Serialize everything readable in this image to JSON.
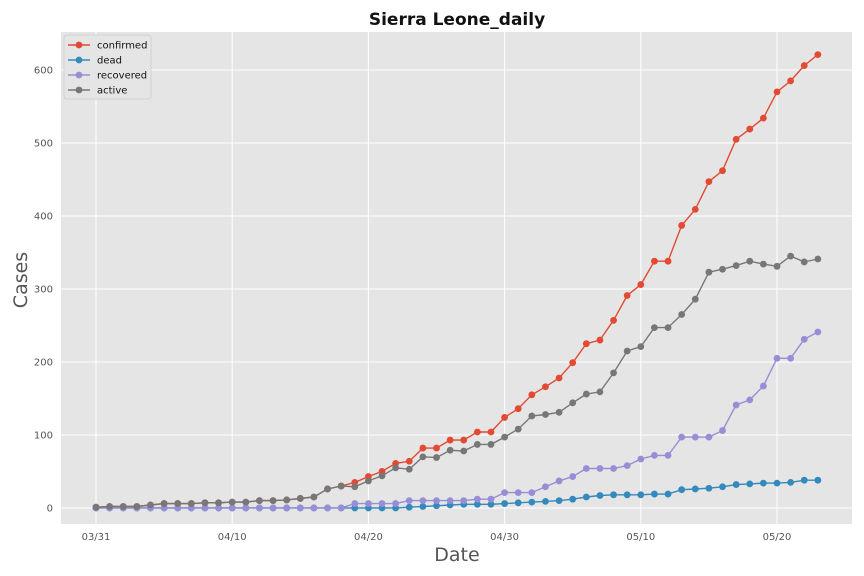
{
  "chart_data": {
    "type": "line",
    "title": "Sierra Leone_daily",
    "xlabel": "Date",
    "ylabel": "Cases",
    "x_start": "03/31",
    "x_tick_labels": [
      "03/31",
      "04/10",
      "04/20",
      "04/30",
      "05/10",
      "05/20"
    ],
    "y_ticks": [
      0,
      100,
      200,
      300,
      400,
      500,
      600
    ],
    "ylim": [
      -22,
      652
    ],
    "grid": true,
    "legend_position": "top-left",
    "series": [
      {
        "name": "confirmed",
        "color": "#E24A33",
        "values": [
          1,
          2,
          2,
          2,
          4,
          6,
          6,
          6,
          7,
          7,
          8,
          8,
          10,
          10,
          11,
          13,
          15,
          26,
          30,
          35,
          43,
          50,
          61,
          64,
          82,
          82,
          93,
          93,
          104,
          104,
          124,
          136,
          155,
          166,
          178,
          199,
          225,
          230,
          257,
          291,
          306,
          338,
          338,
          387,
          409,
          447,
          462,
          505,
          519,
          534,
          570,
          585,
          606,
          621
        ]
      },
      {
        "name": "dead",
        "color": "#348ABD",
        "values": [
          0,
          0,
          0,
          0,
          0,
          0,
          0,
          0,
          0,
          0,
          0,
          0,
          0,
          0,
          0,
          0,
          0,
          0,
          0,
          0,
          0,
          0,
          0,
          1,
          2,
          3,
          4,
          5,
          5,
          5,
          6,
          7,
          8,
          9,
          10,
          12,
          15,
          17,
          18,
          18,
          18,
          19,
          19,
          25,
          26,
          27,
          29,
          32,
          33,
          34,
          34,
          35,
          38,
          38
        ]
      },
      {
        "name": "recovered",
        "color": "#988ED5",
        "values": [
          0,
          0,
          0,
          0,
          0,
          0,
          0,
          0,
          0,
          0,
          0,
          0,
          0,
          0,
          0,
          0,
          0,
          0,
          0,
          6,
          6,
          6,
          6,
          10,
          10,
          10,
          10,
          10,
          12,
          12,
          21,
          21,
          21,
          29,
          37,
          43,
          54,
          54,
          54,
          58,
          67,
          72,
          72,
          97,
          97,
          97,
          106,
          141,
          148,
          167,
          205,
          205,
          231,
          241
        ]
      },
      {
        "name": "active",
        "color": "#777777",
        "values": [
          1,
          2,
          2,
          2,
          4,
          6,
          6,
          6,
          7,
          7,
          8,
          8,
          10,
          10,
          11,
          13,
          15,
          26,
          30,
          29,
          37,
          44,
          55,
          53,
          70,
          69,
          79,
          78,
          87,
          87,
          97,
          108,
          126,
          128,
          131,
          144,
          156,
          159,
          185,
          215,
          221,
          247,
          247,
          265,
          286,
          323,
          327,
          332,
          338,
          334,
          331,
          345,
          337,
          341
        ]
      }
    ]
  }
}
